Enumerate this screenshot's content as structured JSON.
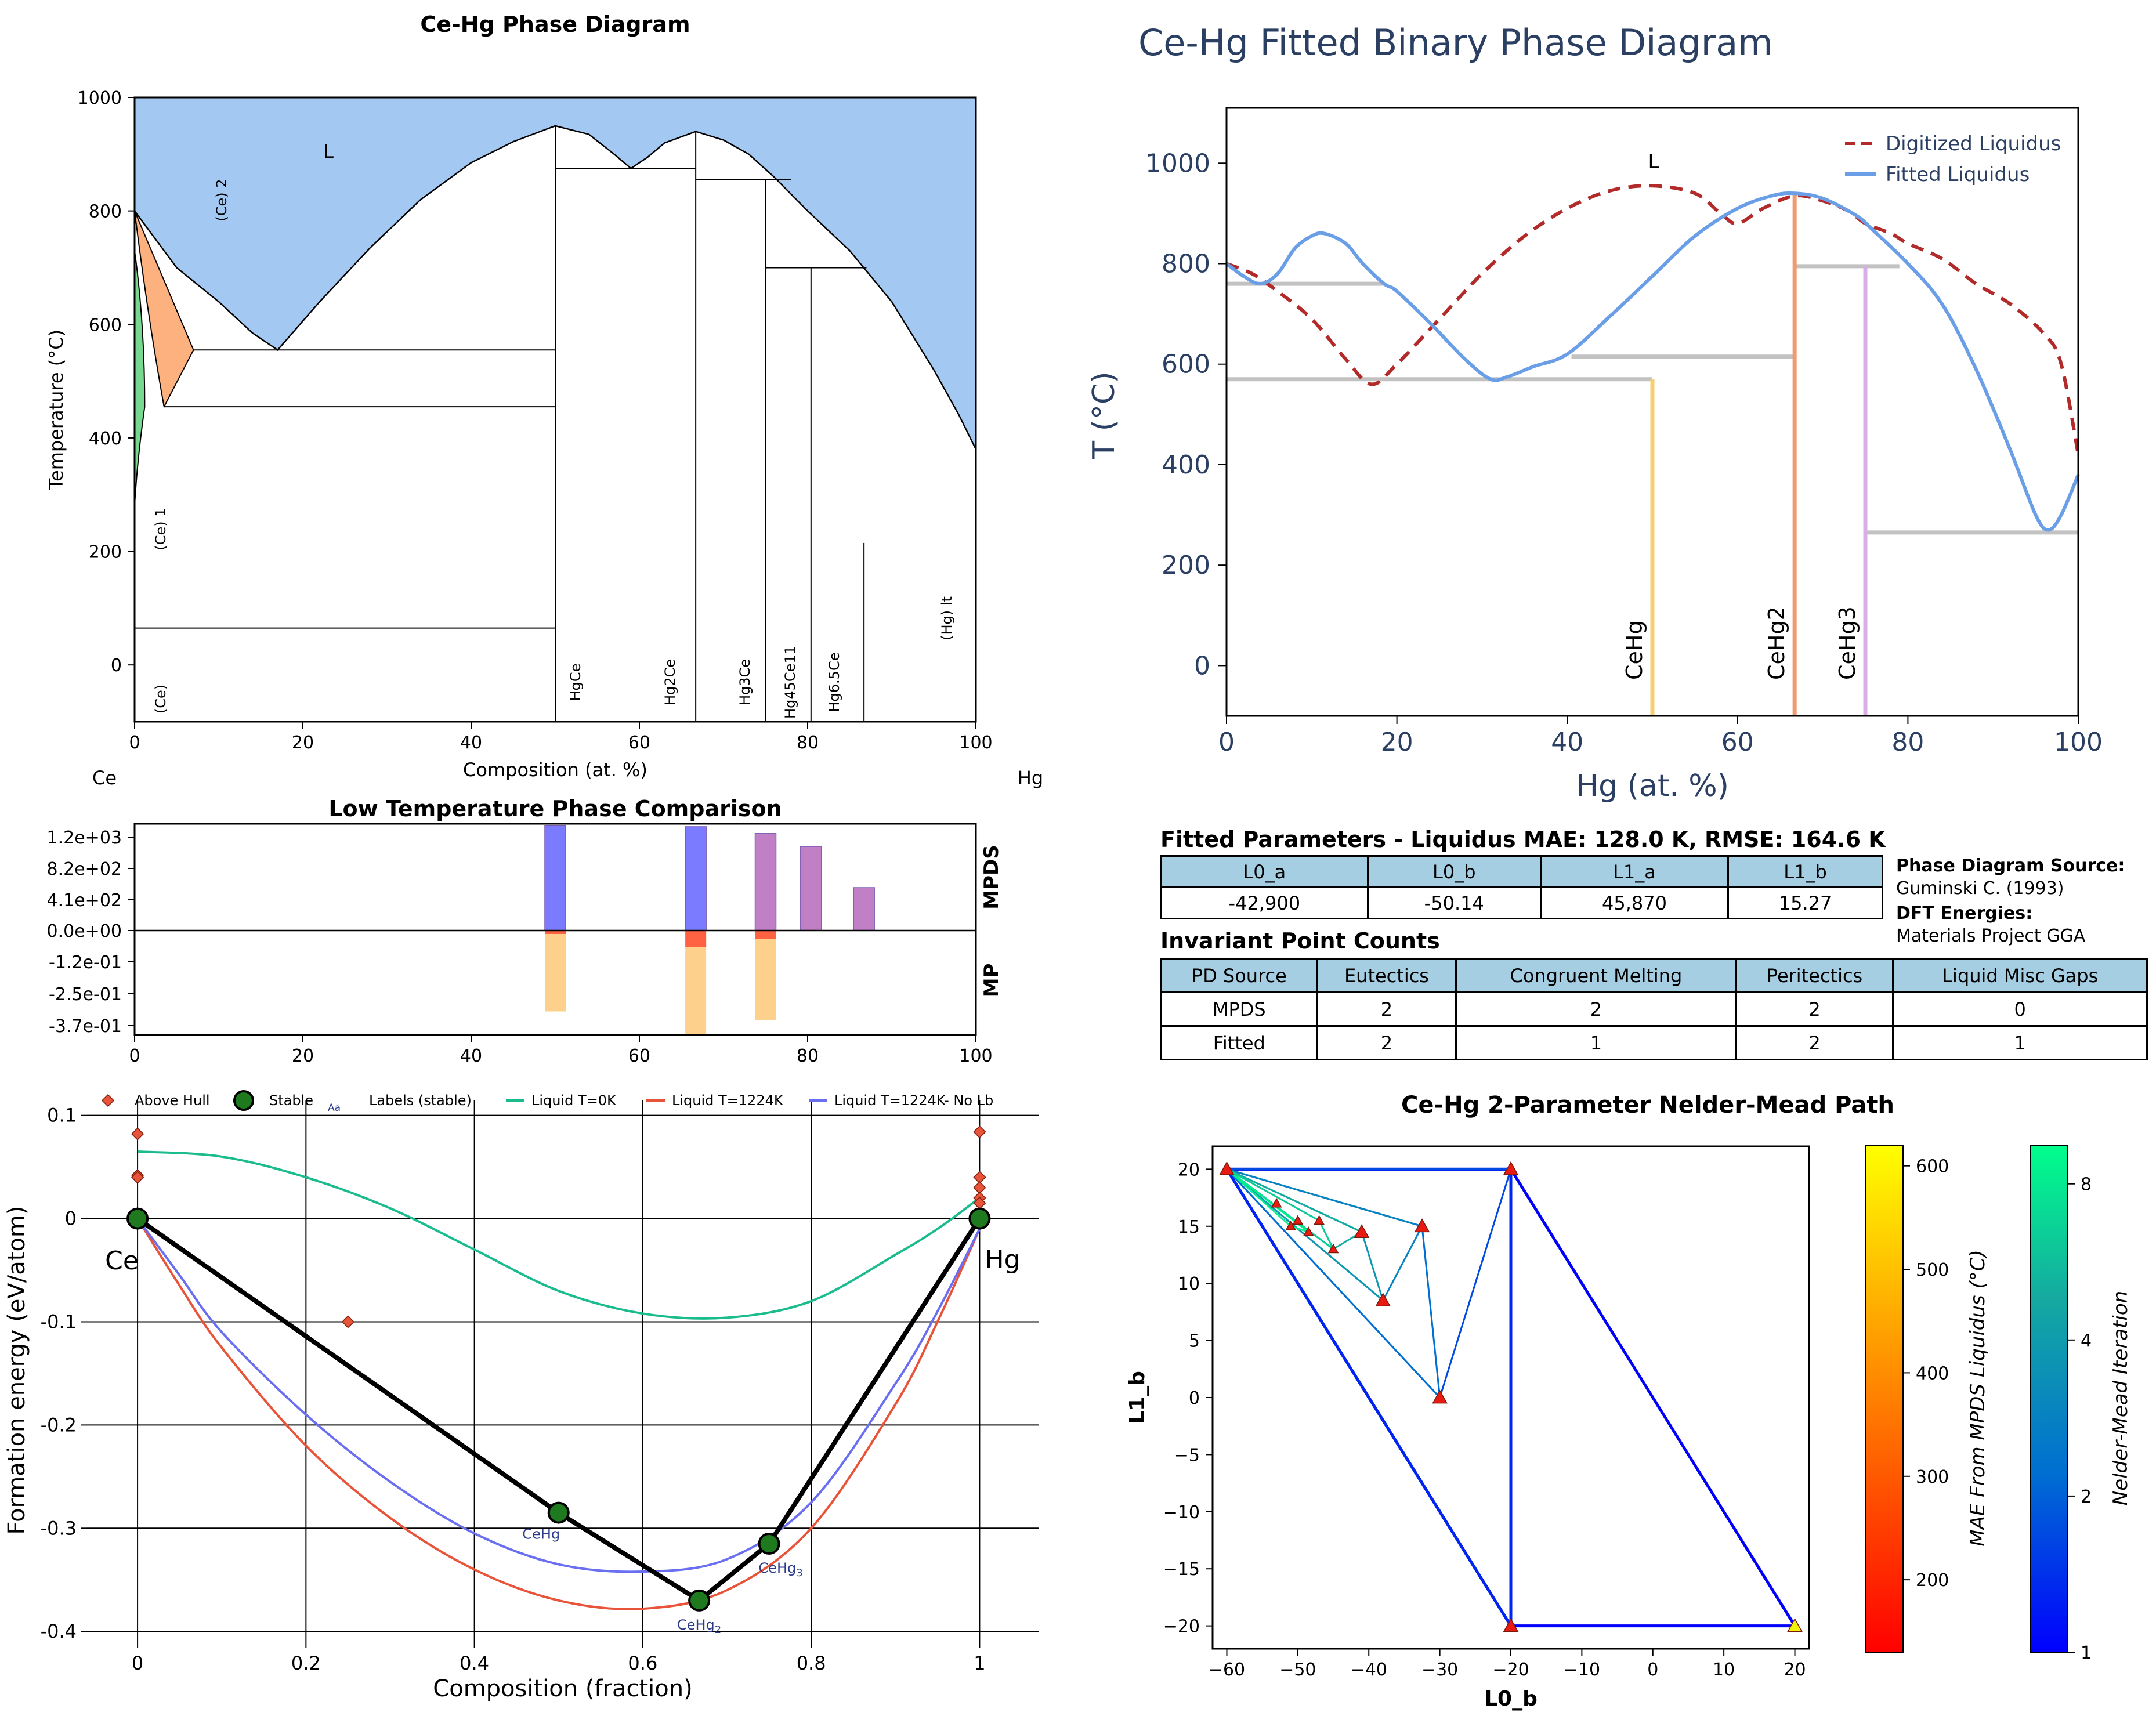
{
  "chart_data": [
    {
      "type": "phase-diagram",
      "title": "Ce-Hg Phase Diagram",
      "xlabel": "Composition (at. %)",
      "ylabel": "Temperature (°C)",
      "xlim": [
        0,
        100
      ],
      "ylim": [
        -100,
        1000
      ],
      "x_ticks": [
        0,
        20,
        40,
        60,
        80,
        100
      ],
      "y_ticks": [
        0,
        200,
        400,
        600,
        800,
        1000
      ],
      "end_labels": [
        "Ce",
        "Hg"
      ],
      "phase_labels": [
        "L",
        "(Ce) 2",
        "(Ce) 1",
        "(Ce)",
        "HgCe",
        "Hg2Ce",
        "Hg3Ce",
        "Hg45Ce11",
        "Hg6.5Ce",
        "(Hg) lt"
      ],
      "liquid_color": "#a3c8f2",
      "ce2_region_color": "#fdb17e",
      "ce1_region_color": "#77d88f",
      "liquidus": [
        [
          0,
          800
        ],
        [
          5,
          700
        ],
        [
          10,
          640
        ],
        [
          14,
          585
        ],
        [
          17,
          555
        ],
        [
          22,
          640
        ],
        [
          28,
          735
        ],
        [
          34,
          820
        ],
        [
          40,
          885
        ],
        [
          45,
          922
        ],
        [
          50,
          950
        ],
        [
          54,
          935
        ],
        [
          57,
          900
        ],
        [
          59,
          875
        ],
        [
          61,
          895
        ],
        [
          63,
          920
        ],
        [
          66.7,
          940
        ],
        [
          70,
          925
        ],
        [
          73,
          900
        ],
        [
          76,
          860
        ],
        [
          80,
          800
        ],
        [
          85,
          730
        ],
        [
          90,
          640
        ],
        [
          95,
          520
        ],
        [
          98,
          440
        ],
        [
          100,
          380
        ]
      ],
      "invariant_lines": [
        {
          "x": [
            7,
            50
          ],
          "y": 555
        },
        {
          "x": [
            3.5,
            50
          ],
          "y": 455
        },
        {
          "x": [
            0,
            50
          ],
          "y": 65
        },
        {
          "x": [
            50,
            66.7
          ],
          "y": 875
        },
        {
          "x": [
            66.7,
            78
          ],
          "y": 855
        },
        {
          "x": [
            75,
            87
          ],
          "y": 700
        }
      ],
      "compound_lines": [
        {
          "x": 50,
          "y": [
            -100,
            950
          ]
        },
        {
          "x": 66.7,
          "y": [
            -100,
            940
          ]
        },
        {
          "x": 75,
          "y": [
            -100,
            855
          ]
        },
        {
          "x": 80.4,
          "y": [
            -100,
            700
          ]
        },
        {
          "x": 86.7,
          "y": [
            -100,
            215
          ]
        }
      ]
    },
    {
      "type": "bar",
      "title": "Low Temperature Phase Comparison",
      "panels": [
        "MPDS",
        "MP"
      ],
      "x_ticks": [
        0,
        20,
        40,
        60,
        80,
        100
      ],
      "y_ticks_labels": [
        "1.2e+03",
        "8.2e+02",
        "4.1e+02",
        "0.0e+00",
        "-1.2e-01",
        "-2.5e-01",
        "-3.7e-01"
      ],
      "mpds_bars": [
        {
          "x": 50,
          "value": 1225,
          "color": "#7b7bff"
        },
        {
          "x": 66.7,
          "value": 1210,
          "color": "#7b7bff"
        },
        {
          "x": 75,
          "value": 1130,
          "color": "#c17fc6"
        },
        {
          "x": 80.4,
          "value": 980,
          "color": "#c17fc6"
        },
        {
          "x": 86.7,
          "value": 500,
          "color": "#c17fc6"
        }
      ],
      "mp_bars": [
        {
          "x": 50,
          "stable": -0.29,
          "above_hull": 0.0,
          "color_total": "#fdd08b",
          "color_hull": "#ff6242"
        },
        {
          "x": 66.7,
          "stable": -0.375,
          "above_hull": 0.06,
          "color_total": "#fdd08b",
          "color_hull": "#ff6242"
        },
        {
          "x": 75,
          "stable": -0.32,
          "above_hull": 0.03,
          "color_total": "#fdd08b",
          "color_hull": "#ff6242"
        }
      ]
    },
    {
      "type": "line",
      "title": "",
      "xlabel": "Composition (fraction)",
      "ylabel": "Formation energy (eV/atom)",
      "xlim": [
        -0.06,
        1.07
      ],
      "ylim": [
        -0.41,
        0.115
      ],
      "x_ticks": [
        0,
        0.2,
        0.4,
        0.6,
        0.8,
        1
      ],
      "y_ticks": [
        0.1,
        0,
        -0.1,
        -0.2,
        -0.3,
        -0.4
      ],
      "legend": [
        "Above Hull",
        "Stable",
        "Labels (stable)",
        "Liquid T=0K",
        "Liquid T=1224K",
        "Liquid T=1224K- No Lb"
      ],
      "legend_aa": "Aa",
      "end_labels": [
        "Ce",
        "Hg"
      ],
      "hull_points": [
        [
          0,
          0
        ],
        [
          0.5,
          -0.285
        ],
        [
          0.667,
          -0.37
        ],
        [
          0.75,
          -0.315
        ],
        [
          1,
          0
        ]
      ],
      "stable_labels": [
        {
          "x": 0.5,
          "y": -0.285,
          "base": "CeHg",
          "sub": ""
        },
        {
          "x": 0.667,
          "y": -0.37,
          "base": "CeHg",
          "sub": "2"
        },
        {
          "x": 0.75,
          "y": -0.315,
          "base": "CeHg",
          "sub": "3"
        }
      ],
      "above_hull": [
        [
          0,
          0.082
        ],
        [
          0,
          0.042
        ],
        [
          0,
          0.04
        ],
        [
          0.25,
          -0.1
        ],
        [
          1,
          0.084
        ],
        [
          1,
          0.04
        ],
        [
          1,
          0.03
        ],
        [
          1,
          0.02
        ],
        [
          1,
          0.015
        ]
      ],
      "series": [
        {
          "name": "Liquid T=0K",
          "color": "#1abc8e",
          "x": [
            0,
            0.1,
            0.2,
            0.3,
            0.4,
            0.5,
            0.6,
            0.7,
            0.8,
            0.9,
            0.95,
            1
          ],
          "y": [
            0.065,
            0.06,
            0.04,
            0.01,
            -0.03,
            -0.07,
            -0.092,
            -0.096,
            -0.08,
            -0.035,
            -0.01,
            0.02
          ]
        },
        {
          "name": "Liquid T=1224K",
          "color": "#e8543a",
          "x": [
            0,
            0.05,
            0.1,
            0.2,
            0.3,
            0.4,
            0.5,
            0.6,
            0.7,
            0.8,
            0.9,
            0.95,
            1
          ],
          "y": [
            0,
            -0.065,
            -0.125,
            -0.22,
            -0.29,
            -0.34,
            -0.37,
            -0.378,
            -0.36,
            -0.3,
            -0.18,
            -0.1,
            -0.01
          ]
        },
        {
          "name": "Liquid T=1224K- No Lb",
          "color": "#6a6ef0",
          "x": [
            0,
            0.05,
            0.1,
            0.2,
            0.3,
            0.4,
            0.5,
            0.6,
            0.7,
            0.8,
            0.9,
            0.95,
            1
          ],
          "y": [
            0,
            -0.055,
            -0.11,
            -0.19,
            -0.255,
            -0.305,
            -0.335,
            -0.342,
            -0.33,
            -0.275,
            -0.16,
            -0.09,
            -0.01
          ]
        }
      ]
    },
    {
      "type": "line",
      "title": "Ce-Hg Fitted Binary Phase Diagram",
      "xlabel": "Hg (at. %)",
      "ylabel": "T (°C)",
      "xlim": [
        0,
        100
      ],
      "ylim": [
        -100,
        1110
      ],
      "x_ticks": [
        0,
        20,
        40,
        60,
        80,
        100
      ],
      "y_ticks": [
        0,
        200,
        400,
        600,
        800,
        1000
      ],
      "region_label": "L",
      "series": [
        {
          "name": "Digitized Liquidus",
          "color": "#b22a2a",
          "dashed": true,
          "x": [
            0,
            3,
            6,
            10,
            14,
            17,
            20,
            25,
            30,
            35,
            40,
            45,
            50,
            55,
            58,
            60,
            63,
            66.7,
            70,
            73,
            75,
            78,
            80,
            84,
            88,
            92,
            96,
            98,
            100
          ],
          "y": [
            800,
            780,
            745,
            690,
            610,
            560,
            600,
            690,
            780,
            855,
            910,
            945,
            955,
            940,
            900,
            880,
            910,
            935,
            925,
            905,
            880,
            860,
            840,
            810,
            760,
            720,
            660,
            600,
            420
          ]
        },
        {
          "name": "Fitted Liquidus",
          "color": "#6a9ee6",
          "x": [
            0,
            2,
            4,
            6,
            8,
            10,
            11.5,
            14,
            16,
            18.5,
            20,
            24,
            28,
            31,
            33,
            36,
            40,
            45,
            50,
            55,
            60,
            64,
            66.7,
            70,
            74,
            76,
            80,
            84,
            88,
            92,
            95,
            96.5,
            98,
            100
          ],
          "y": [
            800,
            775,
            760,
            780,
            830,
            855,
            860,
            840,
            800,
            760,
            745,
            680,
            610,
            570,
            575,
            595,
            620,
            695,
            775,
            855,
            910,
            935,
            940,
            930,
            895,
            865,
            800,
            720,
            590,
            430,
            300,
            270,
            300,
            380
          ]
        }
      ],
      "horizontal_lines": [
        {
          "x": [
            0,
            18.5
          ],
          "y": 760
        },
        {
          "x": [
            0,
            50
          ],
          "y": 570
        },
        {
          "x": [
            40.5,
            66.7
          ],
          "y": 615
        },
        {
          "x": [
            66.7,
            79
          ],
          "y": 795
        },
        {
          "x": [
            75,
            100
          ],
          "y": 265
        }
      ],
      "compound_lines": [
        {
          "x": 50,
          "y_top": 570,
          "label": "CeHg",
          "color": "#f7cf70"
        },
        {
          "x": 66.7,
          "y_top": 940,
          "label": "CeHg2",
          "color": "#f09a6e"
        },
        {
          "x": 75,
          "y_top": 795,
          "label": "CeHg3",
          "color": "#d9aee6"
        }
      ],
      "solvus_color": "#c2c2c2"
    },
    {
      "type": "scatter",
      "title": "Ce-Hg 2-Parameter Nelder-Mead Path",
      "xlabel": "L0_b",
      "ylabel": "L1_b",
      "xlim": [
        -62,
        22
      ],
      "ylim": [
        -22,
        22
      ],
      "x_ticks": [
        -60,
        -50,
        -40,
        -30,
        -20,
        -10,
        0,
        10,
        20
      ],
      "y_ticks": [
        20,
        15,
        10,
        5,
        0,
        -5,
        -10,
        -15,
        -20
      ],
      "simplices": [
        {
          "iter": 1,
          "pts": [
            [
              -60,
              20
            ],
            [
              -20,
              20
            ],
            [
              -20,
              -20
            ]
          ]
        },
        {
          "iter": 1,
          "pts": [
            [
              -20,
              -20
            ],
            [
              20,
              -20
            ],
            [
              -20,
              20
            ]
          ]
        },
        {
          "iter": 2,
          "pts": [
            [
              -60,
              20
            ],
            [
              -20,
              20
            ],
            [
              -20,
              -20
            ]
          ]
        },
        {
          "iter": 3,
          "pts": [
            [
              -60,
              20
            ],
            [
              -30,
              0
            ],
            [
              -20,
              20
            ]
          ]
        },
        {
          "iter": 4,
          "pts": [
            [
              -60,
              20
            ],
            [
              -30,
              0
            ],
            [
              -32.5,
              15
            ]
          ]
        },
        {
          "iter": 5,
          "pts": [
            [
              -60,
              20
            ],
            [
              -38,
              8.5
            ],
            [
              -32.5,
              15
            ]
          ]
        },
        {
          "iter": 6,
          "pts": [
            [
              -60,
              20
            ],
            [
              -38,
              8.5
            ],
            [
              -41,
              14.5
            ]
          ]
        },
        {
          "iter": 7,
          "pts": [
            [
              -60,
              20
            ],
            [
              -45,
              13
            ],
            [
              -41,
              14.5
            ]
          ]
        },
        {
          "iter": 8,
          "pts": [
            [
              -60,
              20
            ],
            [
              -47,
              15.5
            ],
            [
              -45,
              13
            ]
          ]
        },
        {
          "iter": 9,
          "pts": [
            [
              -60,
              20
            ],
            [
              -51,
              15
            ],
            [
              -48.5,
              14.5
            ]
          ]
        }
      ],
      "points": [
        {
          "x": -60,
          "y": 20,
          "mae": 130
        },
        {
          "x": -20,
          "y": 20,
          "mae": 140
        },
        {
          "x": -20,
          "y": -20,
          "mae": 160
        },
        {
          "x": 20,
          "y": -20,
          "mae": 620
        },
        {
          "x": -30,
          "y": 0,
          "mae": 135
        },
        {
          "x": -32.5,
          "y": 15,
          "mae": 132
        },
        {
          "x": -38,
          "y": 8.5,
          "mae": 135
        },
        {
          "x": -41,
          "y": 14.5,
          "mae": 130
        },
        {
          "x": -45,
          "y": 13,
          "mae": 130
        },
        {
          "x": -47,
          "y": 15.5,
          "mae": 128
        },
        {
          "x": -48.5,
          "y": 14.5,
          "mae": 128
        },
        {
          "x": -50,
          "y": 15.5,
          "mae": 128
        },
        {
          "x": -51,
          "y": 15,
          "mae": 128
        },
        {
          "x": -53,
          "y": 17,
          "mae": 128
        }
      ],
      "colorbar_mae": {
        "label": "MAE From MPDS Liquidus (°C)",
        "ticks": [
          200,
          300,
          400,
          500,
          600
        ],
        "range": [
          130,
          620
        ]
      },
      "colorbar_iter": {
        "label": "Nelder-Mead Iteration",
        "ticks": [
          1,
          2,
          4,
          8
        ],
        "range": [
          1,
          9.5
        ]
      }
    }
  ],
  "fitted_parameters": {
    "title": "Fitted Parameters - Liquidus MAE: 128.0 K, RMSE: 164.6 K",
    "headers": [
      "L0_a",
      "L0_b",
      "L1_a",
      "L1_b"
    ],
    "values": [
      "-42,900",
      "-50.14",
      "45,870",
      "15.27"
    ]
  },
  "source_info": {
    "pd_source_label": "Phase Diagram Source:",
    "pd_source": "Guminski C. (1993)",
    "dft_label": "DFT Energies:",
    "dft": "Materials Project GGA"
  },
  "invariant_counts": {
    "title": "Invariant Point Counts",
    "headers": [
      "PD Source",
      "Eutectics",
      "Congruent Melting",
      "Peritectics",
      "Liquid Misc Gaps"
    ],
    "rows": [
      [
        "MPDS",
        "2",
        "2",
        "2",
        "0"
      ],
      [
        "Fitted",
        "2",
        "1",
        "2",
        "1"
      ]
    ]
  }
}
